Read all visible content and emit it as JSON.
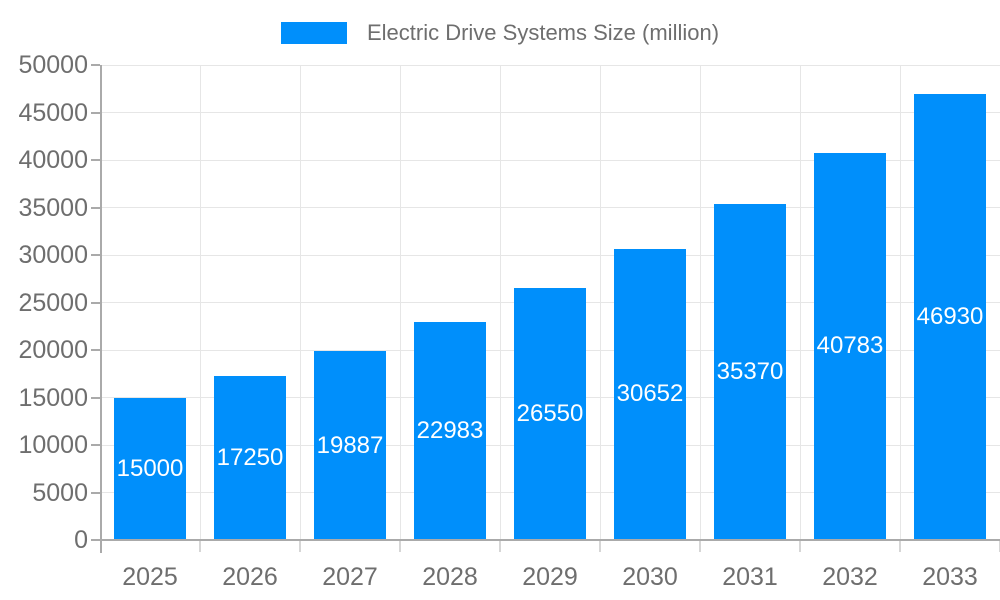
{
  "legend": {
    "label": "Electric Drive Systems Size (million)"
  },
  "axis": {
    "y_tick_labels": [
      "0",
      "5000",
      "10000",
      "15000",
      "20000",
      "25000",
      "30000",
      "35000",
      "40000",
      "45000",
      "50000"
    ],
    "x_tick_labels": [
      "2025",
      "2026",
      "2027",
      "2028",
      "2029",
      "2030",
      "2031",
      "2032",
      "2033"
    ]
  },
  "chart_data": {
    "type": "bar",
    "title": "Electric Drive Systems Size (million)",
    "categories": [
      "2025",
      "2026",
      "2027",
      "2028",
      "2029",
      "2030",
      "2031",
      "2032",
      "2033"
    ],
    "values": [
      15000,
      17250,
      19887,
      22983,
      26550,
      30652,
      35370,
      40783,
      46930
    ],
    "xlabel": "",
    "ylabel": "",
    "ylim": [
      0,
      50000
    ],
    "ytick_step": 5000,
    "grid": true,
    "legend_position": "top-center",
    "value_labels": "inside-center"
  },
  "colors": {
    "bar": "#008FFB",
    "background": "#ffffff",
    "grid_line": "#e6e6e6",
    "axis_line": "#aaaaaa",
    "category_tick": "#d6d6d6",
    "axis_label_text": "#6e6e6e",
    "legend_text": "#6e6e6e",
    "value_label_text": "#ffffff"
  }
}
